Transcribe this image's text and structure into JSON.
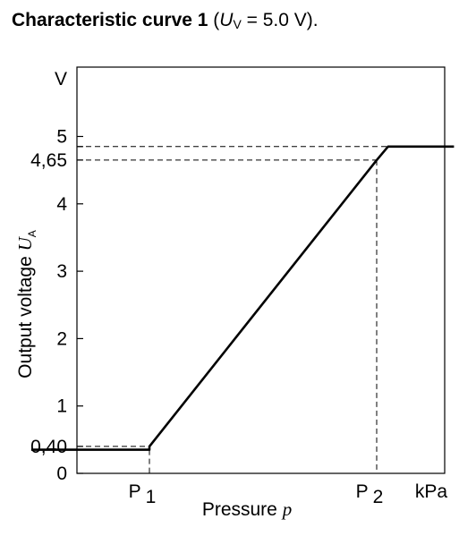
{
  "title": {
    "bold": "Characteristic curve 1",
    "open": " (",
    "var": "U",
    "sub": "V",
    "rest": " = 5.0 V)."
  },
  "chart_data": {
    "type": "line",
    "ylabel": {
      "text": "Output voltage ",
      "var": "U",
      "sub": "A"
    },
    "xlabel": {
      "text": "Pressure ",
      "var": "p"
    },
    "y_unit": "V",
    "x_unit": "kPa",
    "ylim": [
      0,
      6
    ],
    "y_ticks": [
      {
        "value": 0,
        "label": "0"
      },
      {
        "value": 0.35,
        "label": ""
      },
      {
        "value": 0.4,
        "label": "0,40"
      },
      {
        "value": 1,
        "label": "1"
      },
      {
        "value": 2,
        "label": "2"
      },
      {
        "value": 3,
        "label": "3"
      },
      {
        "value": 4,
        "label": "4"
      },
      {
        "value": 4.65,
        "label": "4,65"
      },
      {
        "value": 4.85,
        "label": ""
      },
      {
        "value": 5,
        "label": "5"
      }
    ],
    "x_ticks": [
      {
        "name": "P",
        "sub": "1"
      },
      {
        "name": "P",
        "sub": "2"
      }
    ],
    "series": [
      {
        "points": [
          {
            "x": -0.52,
            "y": 0.35
          },
          {
            "x": 0.0,
            "y": 0.35
          },
          {
            "x": 0.0,
            "y": 0.4
          },
          {
            "x": 1.0,
            "y": 4.65
          },
          {
            "x": 1.05,
            "y": 4.85
          },
          {
            "x": 1.34,
            "y": 4.85
          }
        ]
      }
    ],
    "grid": false
  }
}
